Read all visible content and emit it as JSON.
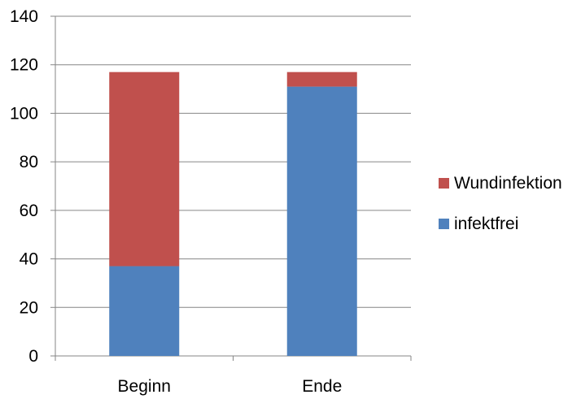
{
  "chart_data": {
    "type": "bar",
    "stacked": true,
    "categories": [
      "Beginn",
      "Ende"
    ],
    "series": [
      {
        "name": "infektfrei",
        "values": [
          37,
          111
        ],
        "color": "#4f81bd"
      },
      {
        "name": "Wundinfektion",
        "values": [
          80,
          6
        ],
        "color": "#c0504d"
      }
    ],
    "ylim": [
      0,
      140
    ],
    "yticks": [
      0,
      20,
      40,
      60,
      80,
      100,
      120,
      140
    ],
    "grid": true,
    "legend": "right",
    "legend_order": [
      "Wundinfektion",
      "infektfrei"
    ]
  }
}
